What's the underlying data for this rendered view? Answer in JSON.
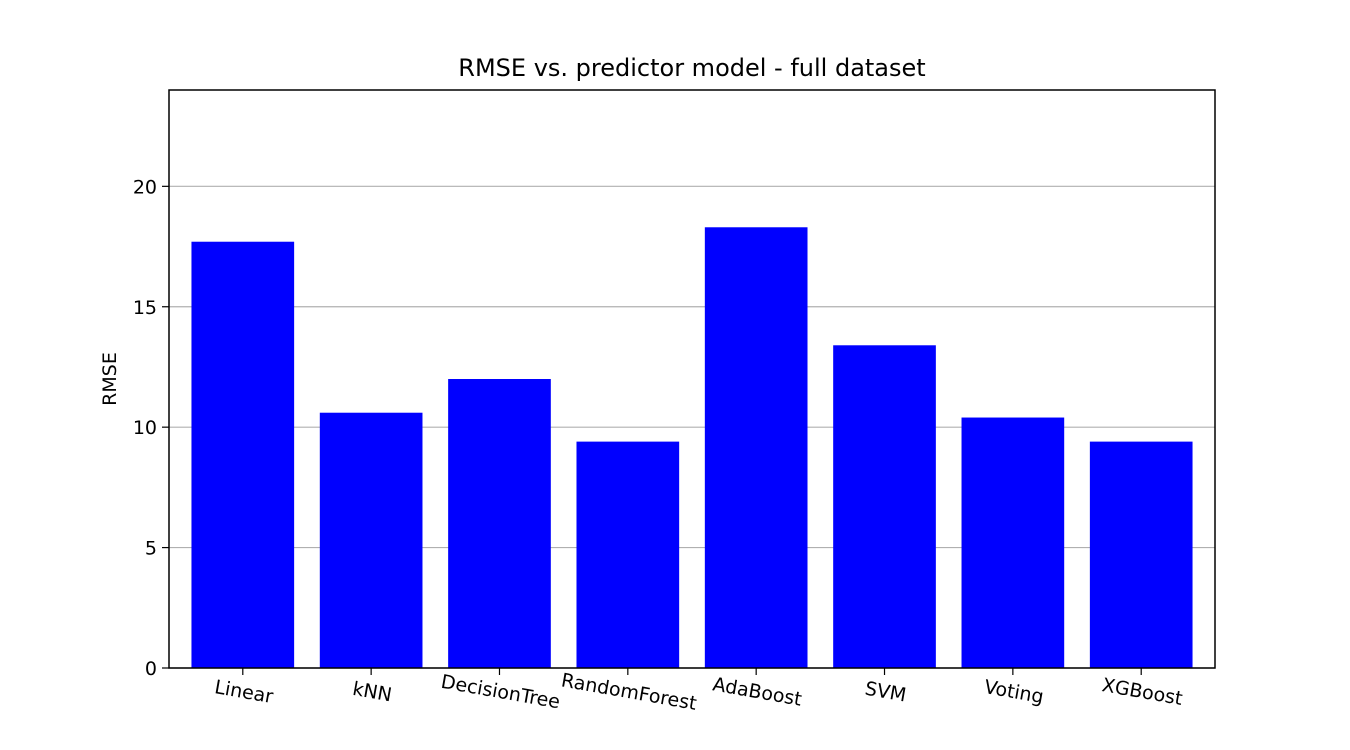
{
  "chart_data": {
    "type": "bar",
    "title": "RMSE vs. predictor model - full dataset",
    "xlabel": "",
    "ylabel": "RMSE",
    "categories": [
      "Linear",
      "kNN",
      "DecisionTree",
      "RandomForest",
      "AdaBoost",
      "SVM",
      "Voting",
      "XGBoost"
    ],
    "values": [
      17.7,
      10.6,
      12.0,
      9.4,
      18.3,
      13.4,
      10.4,
      9.4
    ],
    "ylim": [
      0,
      24
    ],
    "yticks": [
      0,
      5,
      10,
      15,
      20
    ],
    "yticks_labels": [
      "0",
      "5",
      "10",
      "15",
      "20"
    ],
    "grid": "y",
    "bar_color": "#0000ff",
    "grid_color": "#b0b0b0",
    "xtick_rotation_deg": 10
  }
}
